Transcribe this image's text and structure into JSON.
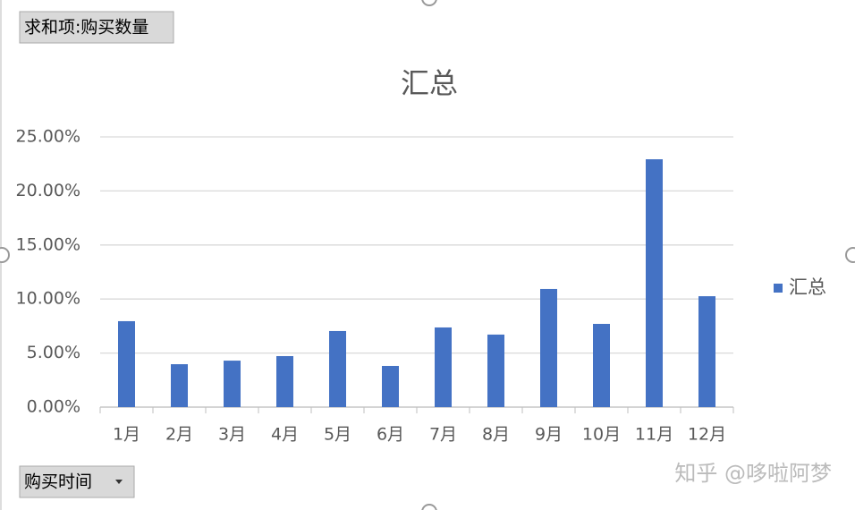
{
  "chart_data": {
    "type": "bar",
    "title": "汇总",
    "categories": [
      "1月",
      "2月",
      "3月",
      "4月",
      "5月",
      "6月",
      "7月",
      "8月",
      "9月",
      "10月",
      "11月",
      "12月"
    ],
    "series": [
      {
        "name": "汇总",
        "color": "#4472c4",
        "values": [
          7.95,
          3.97,
          4.3,
          4.72,
          7.04,
          3.81,
          7.37,
          6.71,
          10.93,
          7.7,
          22.93,
          10.26
        ]
      }
    ],
    "ylim": [
      0,
      25
    ],
    "yticks": [
      {
        "value": 0,
        "label": "0.00%"
      },
      {
        "value": 5,
        "label": "5.00%"
      },
      {
        "value": 10,
        "label": "10.00%"
      },
      {
        "value": 15,
        "label": "15.00%"
      },
      {
        "value": 20,
        "label": "20.00%"
      },
      {
        "value": 25,
        "label": "25.00%"
      }
    ],
    "grid": true,
    "legend": "right"
  },
  "field_buttons": {
    "value_field": "求和项:购买数量",
    "axis_field": "购买时间"
  },
  "watermark": "知乎 @哆啦阿梦"
}
